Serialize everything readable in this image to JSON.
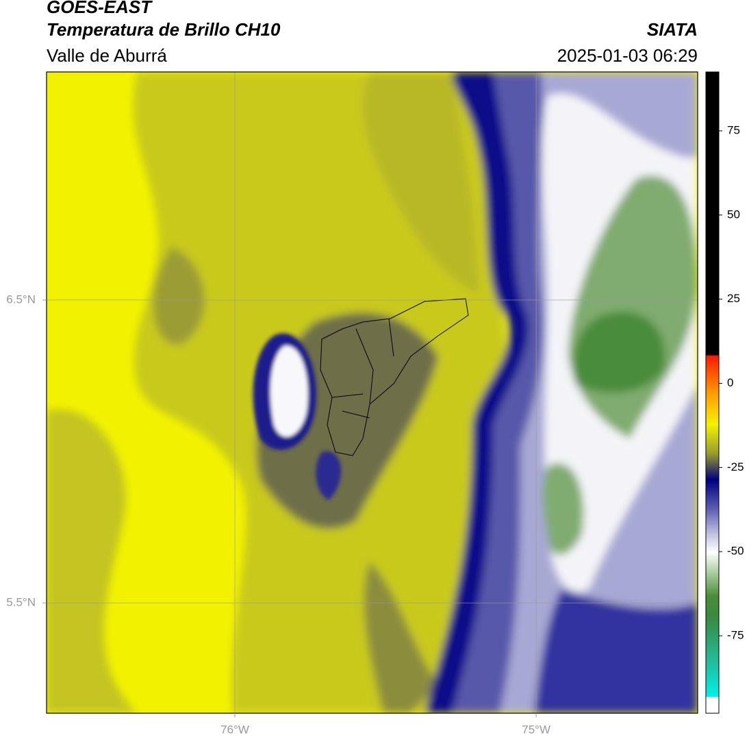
{
  "header": {
    "satellite": "GOES-EAST",
    "product": "Temperatura de Brillo CH10",
    "region": "Valle de Aburrá",
    "source": "SIATA",
    "datetime": "2025-01-03 06:29"
  },
  "map": {
    "xlim": [
      -76.625,
      -74.464
    ],
    "ylim": [
      5.136,
      7.253
    ],
    "xticks": [
      {
        "value": -76,
        "label": "76°W"
      },
      {
        "value": -75,
        "label": "75°W"
      }
    ],
    "yticks": [
      {
        "value": 6.5,
        "label": "6.5°N"
      },
      {
        "value": 5.5,
        "label": "5.5°N"
      }
    ],
    "grid": true
  },
  "colorbar": {
    "lim": [
      -98,
      92.5
    ],
    "ticks": [
      75,
      50,
      25,
      0,
      -25,
      -50,
      -75
    ]
  }
}
